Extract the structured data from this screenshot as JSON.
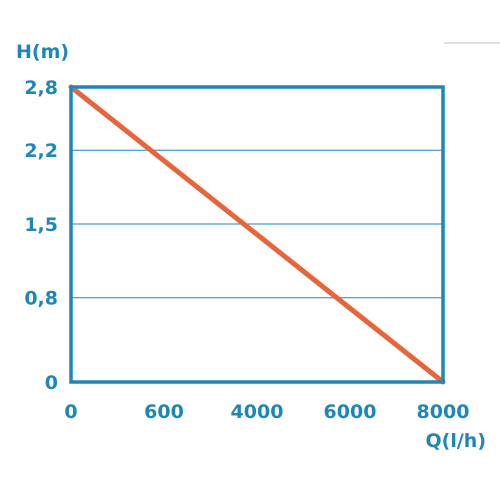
{
  "chart_data": {
    "type": "line",
    "ylabel": "H(m)",
    "xlabel": "Q(l/h)",
    "x_ticks": [
      {
        "label": "0",
        "pos": 0
      },
      {
        "label": "600",
        "pos": 1
      },
      {
        "label": "4000",
        "pos": 2
      },
      {
        "label": "6000",
        "pos": 3
      },
      {
        "label": "8000",
        "pos": 4
      }
    ],
    "y_ticks": [
      {
        "label": "0",
        "value": 0
      },
      {
        "label": "0,8",
        "value": 0.8
      },
      {
        "label": "1,5",
        "value": 1.5
      },
      {
        "label": "2,2",
        "value": 2.2
      },
      {
        "label": "2,8",
        "value": 2.8
      }
    ],
    "ylim": [
      0,
      2.8
    ],
    "grid": true,
    "series": [
      {
        "points": [
          {
            "x": 0,
            "y": 2.8
          },
          {
            "x": 8000,
            "y": 0
          }
        ]
      }
    ]
  },
  "colors": {
    "frame": "#1f86b8",
    "grid": "#1f86b8",
    "line": "#e8643a",
    "labels": "#1f86b8"
  }
}
